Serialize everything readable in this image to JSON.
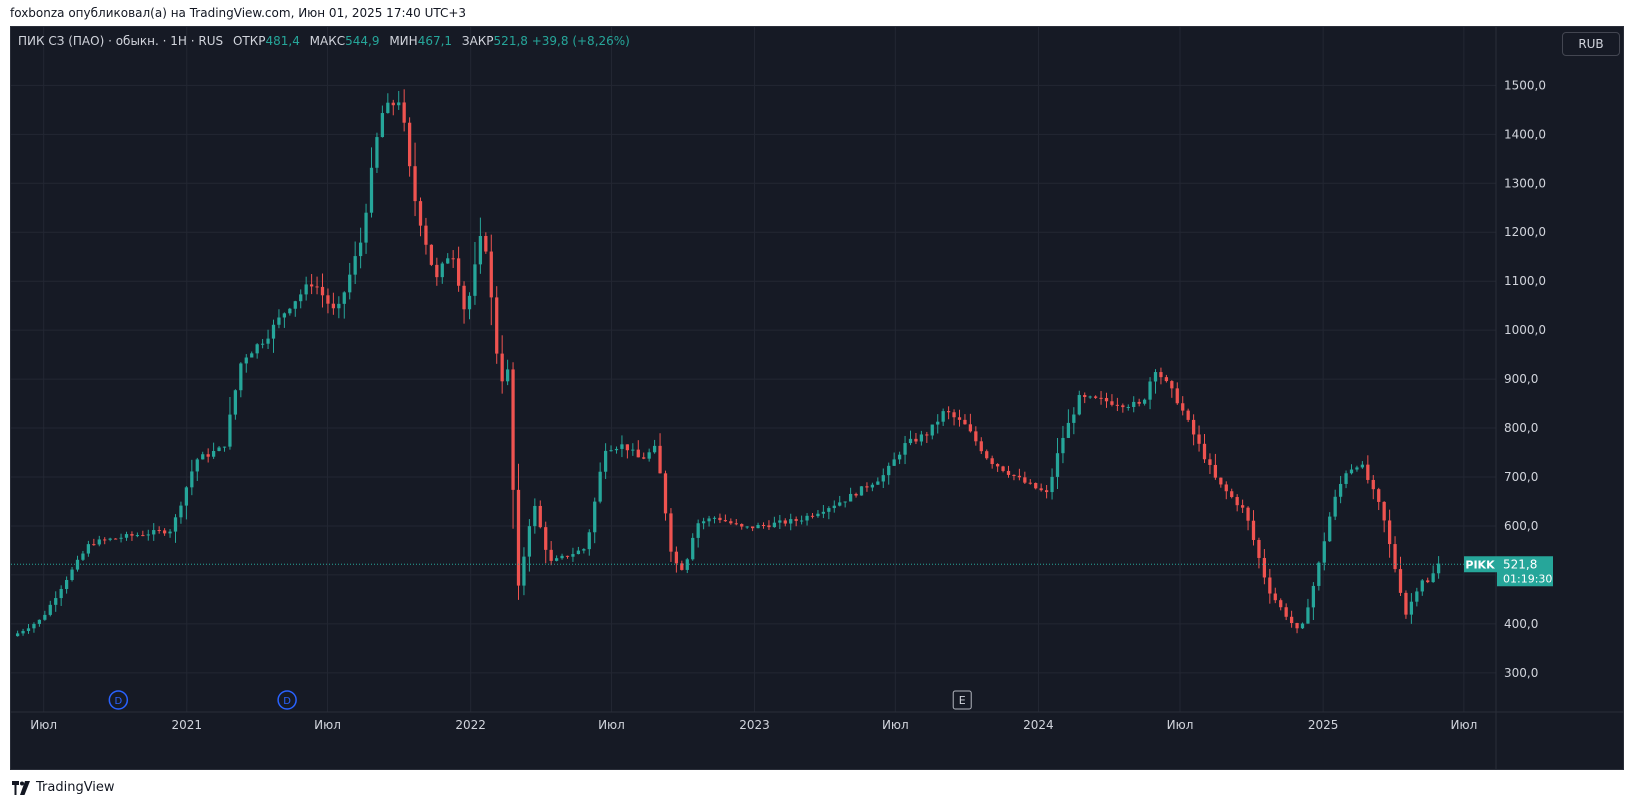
{
  "caption": "foxbonza опубликовал(а) на TradingView.com, Июн 01, 2025 17:40 UTC+3",
  "legend": {
    "title": "ПИК СЗ (ПАО) · обыкн. · 1Н · RUS",
    "open_label": "ОТКР",
    "open_value": "481,4",
    "high_label": "МАКС",
    "high_value": "544,9",
    "low_label": "МИН",
    "low_value": "467,1",
    "close_label": "ЗАКР",
    "close_value": "521,8",
    "change": "+39,8 (+8,26%)"
  },
  "currency_button": "RUB",
  "footer": {
    "brand": "TradingView"
  },
  "colors": {
    "background": "#161a25",
    "up": "#26a69a",
    "down": "#ef5350",
    "grid": "#232733",
    "axis_text": "#d1d4dc",
    "event_blue": "#2962ff"
  },
  "chart_data": {
    "type": "candlestick",
    "symbol": "PIKK",
    "interval": "1W",
    "y_ticks": [
      300,
      400,
      500,
      600,
      700,
      800,
      900,
      1000,
      1100,
      1200,
      1300,
      1400,
      1500
    ],
    "y_tick_labels": [
      "300,0",
      "400,0",
      "500,0",
      "600,0",
      "700,0",
      "800,0",
      "900,0",
      "1000,0",
      "1100,0",
      "1200,0",
      "1300,0",
      "1400,0",
      "1500,0"
    ],
    "ylim": [
      220,
      1560
    ],
    "x_ticks": [
      {
        "date": "2020-07-01",
        "label": "Июл"
      },
      {
        "date": "2021-01-01",
        "label": "2021"
      },
      {
        "date": "2021-07-01",
        "label": "Июл"
      },
      {
        "date": "2022-01-01",
        "label": "2022"
      },
      {
        "date": "2022-07-01",
        "label": "Июл"
      },
      {
        "date": "2023-01-01",
        "label": "2023"
      },
      {
        "date": "2023-07-01",
        "label": "Июл"
      },
      {
        "date": "2024-01-01",
        "label": "2024"
      },
      {
        "date": "2024-07-01",
        "label": "Июл"
      },
      {
        "date": "2025-01-01",
        "label": "2025"
      },
      {
        "date": "2025-07-01",
        "label": "Июл"
      }
    ],
    "x_range": [
      "2020-05-20",
      "2025-08-10"
    ],
    "last_price": {
      "value": 521.8,
      "label": "521,8",
      "ticker": "PIKK",
      "countdown": "01:19:30"
    },
    "events": [
      {
        "date": "2020-10-05",
        "glyph": "D",
        "kind": "dividend"
      },
      {
        "date": "2021-05-10",
        "glyph": "D",
        "kind": "dividend"
      },
      {
        "date": "2023-09-25",
        "glyph": "E",
        "kind": "earnings"
      }
    ],
    "anchors": [
      [
        "2020-05-25",
        375
      ],
      [
        "2020-07-01",
        410
      ],
      [
        "2020-08-01",
        490
      ],
      [
        "2020-09-01",
        565
      ],
      [
        "2020-10-15",
        578
      ],
      [
        "2020-12-15",
        592
      ],
      [
        "2021-01-15",
        735
      ],
      [
        "2021-02-20",
        760
      ],
      [
        "2021-03-15",
        940
      ],
      [
        "2021-04-15",
        985
      ],
      [
        "2021-05-15",
        1050
      ],
      [
        "2021-06-15",
        1100
      ],
      [
        "2021-07-15",
        1030
      ],
      [
        "2021-08-15",
        1180
      ],
      [
        "2021-09-10",
        1440
      ],
      [
        "2021-10-05",
        1475
      ],
      [
        "2021-10-20",
        1290
      ],
      [
        "2021-11-20",
        1100
      ],
      [
        "2021-12-10",
        1170
      ],
      [
        "2021-12-28",
        1030
      ],
      [
        "2022-01-20",
        1215
      ],
      [
        "2022-02-10",
        895
      ],
      [
        "2022-02-20",
        915
      ],
      [
        "2022-03-05",
        465
      ],
      [
        "2022-03-25",
        650
      ],
      [
        "2022-04-15",
        525
      ],
      [
        "2022-06-01",
        555
      ],
      [
        "2022-06-25",
        760
      ],
      [
        "2022-07-20",
        765
      ],
      [
        "2022-08-10",
        735
      ],
      [
        "2022-08-30",
        760
      ],
      [
        "2022-09-20",
        530
      ],
      [
        "2022-10-05",
        510
      ],
      [
        "2022-10-20",
        605
      ],
      [
        "2022-11-15",
        618
      ],
      [
        "2022-12-20",
        595
      ],
      [
        "2023-03-01",
        612
      ],
      [
        "2023-05-01",
        655
      ],
      [
        "2023-06-20",
        705
      ],
      [
        "2023-07-15",
        765
      ],
      [
        "2023-08-15",
        790
      ],
      [
        "2023-09-05",
        835
      ],
      [
        "2023-10-01",
        805
      ],
      [
        "2023-11-01",
        735
      ],
      [
        "2023-12-15",
        690
      ],
      [
        "2024-01-15",
        665
      ],
      [
        "2024-02-01",
        770
      ],
      [
        "2024-02-25",
        860
      ],
      [
        "2024-04-01",
        855
      ],
      [
        "2024-05-15",
        845
      ],
      [
        "2024-06-01",
        925
      ],
      [
        "2024-07-01",
        855
      ],
      [
        "2024-07-20",
        790
      ],
      [
        "2024-08-20",
        690
      ],
      [
        "2024-09-25",
        630
      ],
      [
        "2024-10-25",
        470
      ],
      [
        "2024-11-20",
        410
      ],
      [
        "2024-12-05",
        380
      ],
      [
        "2024-12-25",
        495
      ],
      [
        "2025-01-15",
        640
      ],
      [
        "2025-02-01",
        710
      ],
      [
        "2025-02-20",
        730
      ],
      [
        "2025-03-20",
        630
      ],
      [
        "2025-04-05",
        520
      ],
      [
        "2025-04-20",
        420
      ],
      [
        "2025-05-10",
        492
      ],
      [
        "2025-05-20",
        482
      ],
      [
        "2025-05-30",
        522
      ]
    ]
  }
}
